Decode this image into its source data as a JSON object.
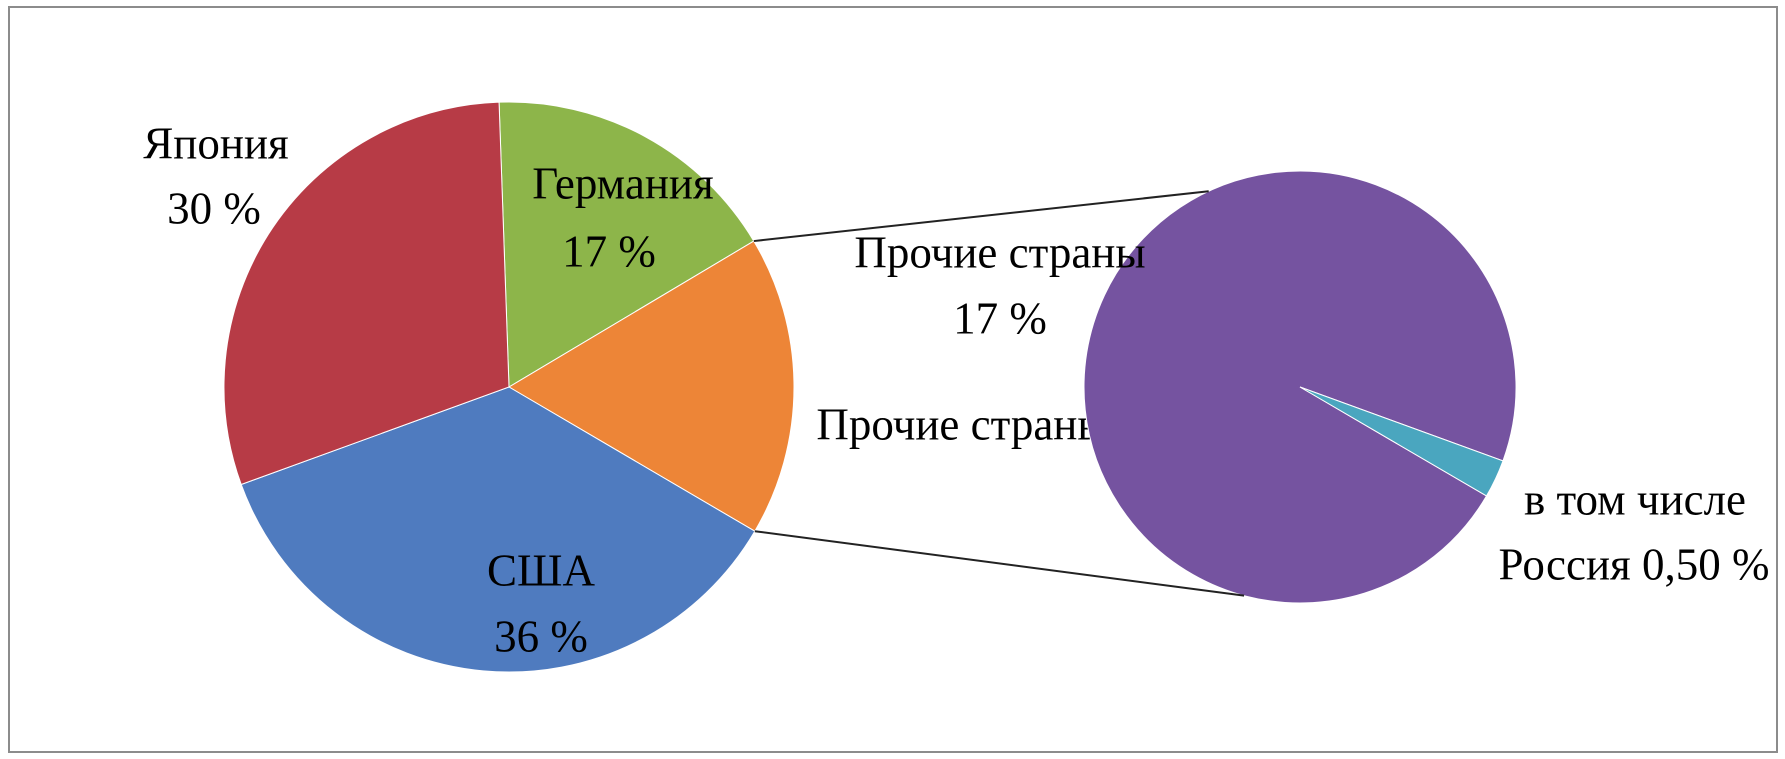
{
  "chart_data": [
    {
      "type": "pie",
      "categories": [
        "Германия",
        "Прочие страны",
        "США",
        "Япония"
      ],
      "values": [
        17,
        17,
        36,
        30
      ],
      "value_labels": [
        "17 %",
        null,
        "36 %",
        "30 %"
      ],
      "colors": [
        "#8db54a",
        "#ed8537",
        "#4f7bbf",
        "#b73b46"
      ]
    },
    {
      "type": "pie",
      "categories": [
        "Прочие страны",
        "в том числе"
      ],
      "values": [
        17,
        0.5
      ],
      "value_labels": [
        "17 %",
        "Россия 0,50 %"
      ],
      "colors": [
        "#7553a0",
        "#4aa6bf"
      ]
    }
  ]
}
